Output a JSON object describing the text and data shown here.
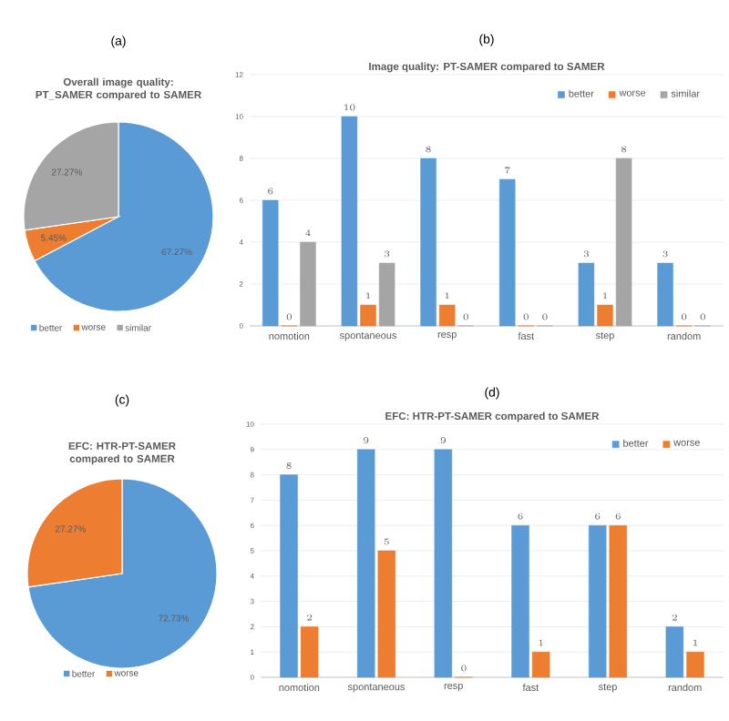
{
  "chart_data": [
    {
      "type": "pie",
      "title": "Overall image quality: PT_SAMER compared to SAMER",
      "annotations": [
        "(a)"
      ],
      "categories": [
        "better",
        "worse",
        "similar"
      ],
      "values": [
        67.27,
        5.45,
        27.27
      ],
      "value_labels": [
        "67.27%",
        "5.45%",
        "27.27%"
      ],
      "colors": [
        "#5b9bd5",
        "#ed7d31",
        "#a5a5a5"
      ],
      "legend": "bottom"
    },
    {
      "type": "bar",
      "title": "Image quality: PT-SAMER compared to SAMER",
      "annotations": [
        "(b)"
      ],
      "categories": [
        "nomotion",
        "spontaneous",
        "resp",
        "fast",
        "step",
        "random"
      ],
      "series": [
        {
          "name": "better",
          "color": "#5b9bd5",
          "values": [
            6,
            10,
            8,
            7,
            3,
            3
          ]
        },
        {
          "name": "worse",
          "color": "#ed7d31",
          "values": [
            0,
            1,
            1,
            0,
            1,
            0
          ]
        },
        {
          "name": "similar",
          "color": "#a5a5a5",
          "values": [
            4,
            3,
            0,
            0,
            8,
            0
          ]
        }
      ],
      "ylim": [
        0,
        12
      ],
      "yticks": [
        0,
        2,
        4,
        6,
        8,
        10,
        12
      ],
      "grid": "y",
      "legend": "top right",
      "data_labels": true
    },
    {
      "type": "pie",
      "title": "EFC: HTR-PT-SAMER compared to SAMER",
      "annotations": [
        "(c)"
      ],
      "categories": [
        "better",
        "worse"
      ],
      "values": [
        72.73,
        27.27
      ],
      "value_labels": [
        "72.73%",
        "27.27%"
      ],
      "colors": [
        "#5b9bd5",
        "#ed7d31"
      ],
      "legend": "bottom"
    },
    {
      "type": "bar",
      "title": "EFC: HTR-PT-SAMER compared to SAMER",
      "annotations": [
        "(d)"
      ],
      "categories": [
        "nomotion",
        "spontaneous",
        "resp",
        "fast",
        "step",
        "random"
      ],
      "series": [
        {
          "name": "better",
          "color": "#5b9bd5",
          "values": [
            8,
            9,
            9,
            6,
            6,
            2
          ]
        },
        {
          "name": "worse",
          "color": "#ed7d31",
          "values": [
            2,
            5,
            0,
            1,
            6,
            1
          ]
        }
      ],
      "ylim": [
        0,
        10
      ],
      "yticks": [
        0,
        1,
        2,
        3,
        4,
        5,
        6,
        7,
        8,
        9,
        10
      ],
      "grid": "y",
      "legend": "top right",
      "data_labels": true
    }
  ]
}
